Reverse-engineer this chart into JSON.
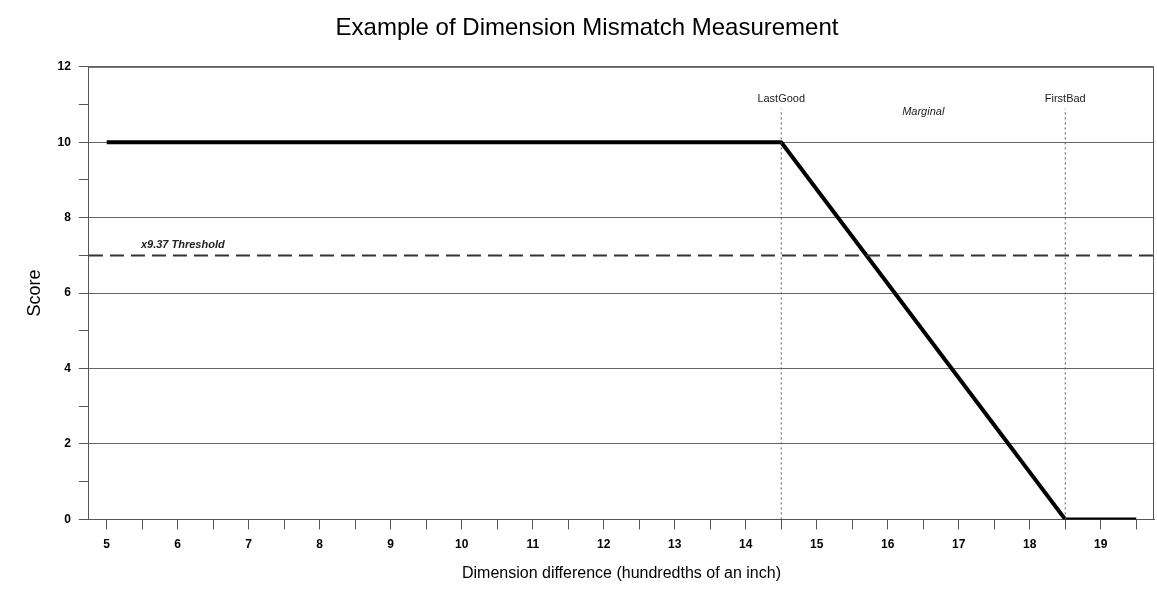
{
  "chart_data": {
    "type": "line",
    "title": "Example of Dimension Mismatch Measurement",
    "xlabel": "Dimension difference (hundredths of an inch)",
    "ylabel": "Score",
    "x": [
      5,
      14.5,
      18.5,
      19.5
    ],
    "series": [
      {
        "color": "#000000",
        "values": [
          10,
          10,
          0,
          0
        ]
      }
    ],
    "xlim": [
      4.75,
      19.75
    ],
    "xticks": [
      5,
      {
        "value": 5.5,
        "label": null
      },
      6,
      {
        "value": 6.5,
        "label": null
      },
      7,
      {
        "value": 7.5,
        "label": null
      },
      8,
      {
        "value": 8.5,
        "label": null
      },
      9,
      {
        "value": 9.5,
        "label": null
      },
      10,
      {
        "value": 10.5,
        "label": null
      },
      11,
      {
        "value": 11.5,
        "label": null
      },
      12,
      {
        "value": 12.5,
        "label": null
      },
      13,
      {
        "value": 13.5,
        "label": null
      },
      14,
      {
        "value": 14.5,
        "label": null
      },
      15,
      {
        "value": 15.5,
        "label": null
      },
      16,
      {
        "value": 16.5,
        "label": null
      },
      17,
      {
        "value": 17.5,
        "label": null
      },
      18,
      {
        "value": 18.5,
        "label": null
      },
      19,
      {
        "value": 19.5,
        "label": null
      }
    ],
    "ylim": [
      0,
      12
    ],
    "yticks": [
      0,
      {
        "value": 1,
        "label": null
      },
      2,
      {
        "value": 3,
        "label": null
      },
      4,
      {
        "value": 5,
        "label": null
      },
      6,
      {
        "value": 7,
        "label": null
      },
      8,
      {
        "value": 9,
        "label": null
      },
      10,
      {
        "value": 11,
        "label": null
      },
      12
    ],
    "grid": "y",
    "legend": false,
    "marker": "none",
    "line_style": "solid",
    "ref_lines": [
      {
        "axis": "y",
        "value": 7,
        "label": "x9.37 Threshold",
        "color": "#333333",
        "line_style": "dashed"
      },
      {
        "axis": "x",
        "value": 14.5,
        "label": "LastGood",
        "color": "#555555",
        "line_style": "dotted"
      },
      {
        "axis": "x",
        "value": 18.5,
        "label": "FirstBad",
        "color": "#555555",
        "line_style": "dotted"
      }
    ],
    "annotations": [
      "Marginal"
    ]
  }
}
